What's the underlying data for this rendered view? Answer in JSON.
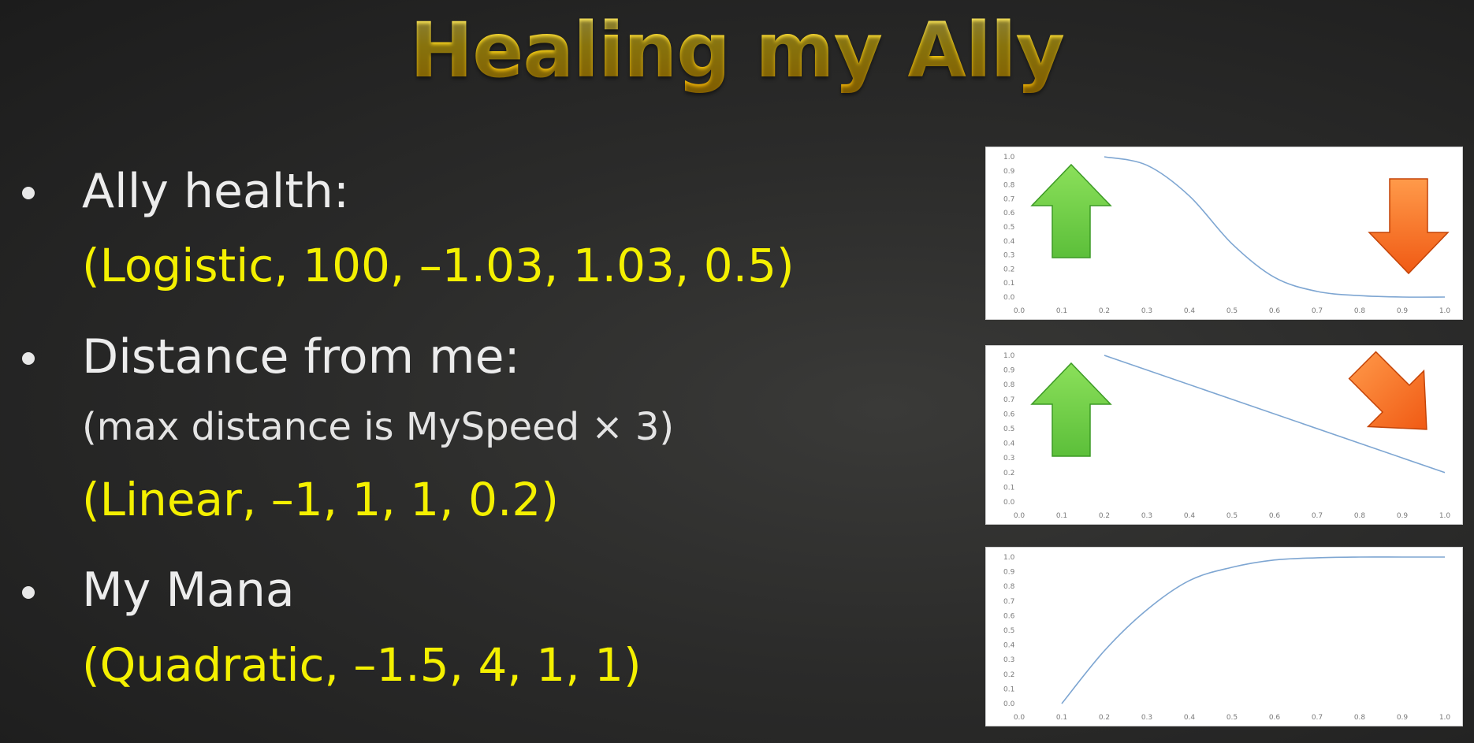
{
  "title": "Healing my Ally",
  "bullets": [
    {
      "heading": "Ally health:",
      "params": "(Logistic, 100, –1.03, 1.03, 0.5)"
    },
    {
      "heading": "Distance from me:",
      "note": "(max distance is MySpeed × 3)",
      "params": "(Linear, –1, 1, 1, 0.2)"
    },
    {
      "heading": "My Mana",
      "params": "(Quadratic, –1.5, 4, 1, 1)"
    }
  ],
  "colors": {
    "title": "#f7d117",
    "params": "#f4f000",
    "curve": "#7ea6d2",
    "arrow_up": "#5cbf3a",
    "arrow_down": "#f05a14"
  },
  "chart_data": [
    {
      "type": "line",
      "x": [
        0.2,
        0.3,
        0.4,
        0.5,
        0.6,
        0.7,
        0.8,
        0.9,
        1.0
      ],
      "series": [
        {
          "values": [
            1.0,
            0.94,
            0.72,
            0.38,
            0.14,
            0.04,
            0.01,
            0.0,
            0.0
          ]
        }
      ],
      "xlim": [
        0,
        1
      ],
      "ylim": [
        0,
        1
      ],
      "xticks": [
        "0.0",
        "0.1",
        "0.2",
        "0.3",
        "0.4",
        "0.5",
        "0.6",
        "0.7",
        "0.8",
        "0.9",
        "1.0"
      ],
      "yticks": [
        "0.0",
        "0.1",
        "0.2",
        "0.3",
        "0.4",
        "0.5",
        "0.6",
        "0.7",
        "0.8",
        "0.9",
        "1.0"
      ],
      "grid": false,
      "icons": [
        "arrow-up-icon",
        "arrow-down-icon"
      ]
    },
    {
      "type": "line",
      "x": [
        0.2,
        1.0
      ],
      "series": [
        {
          "values": [
            1.0,
            0.2
          ]
        }
      ],
      "xlim": [
        0,
        1
      ],
      "ylim": [
        0,
        1
      ],
      "xticks": [
        "0.0",
        "0.1",
        "0.2",
        "0.3",
        "0.4",
        "0.5",
        "0.6",
        "0.7",
        "0.8",
        "0.9",
        "1.0"
      ],
      "yticks": [
        "0.0",
        "0.1",
        "0.2",
        "0.3",
        "0.4",
        "0.5",
        "0.6",
        "0.7",
        "0.8",
        "0.9",
        "1.0"
      ],
      "grid": false,
      "icons": [
        "arrow-up-icon",
        "arrow-down-right-icon"
      ]
    },
    {
      "type": "line",
      "x": [
        0.1,
        0.2,
        0.3,
        0.4,
        0.5,
        0.6,
        0.7,
        0.8,
        0.9,
        1.0
      ],
      "series": [
        {
          "values": [
            0.0,
            0.36,
            0.64,
            0.84,
            0.93,
            0.98,
            0.995,
            1.0,
            1.0,
            1.0
          ]
        }
      ],
      "xlim": [
        0,
        1
      ],
      "ylim": [
        0,
        1
      ],
      "xticks": [
        "0.0",
        "0.1",
        "0.2",
        "0.3",
        "0.4",
        "0.5",
        "0.6",
        "0.7",
        "0.8",
        "0.9",
        "1.0"
      ],
      "yticks": [
        "0.0",
        "0.1",
        "0.2",
        "0.3",
        "0.4",
        "0.5",
        "0.6",
        "0.7",
        "0.8",
        "0.9",
        "1.0"
      ],
      "grid": false,
      "icons": []
    }
  ]
}
